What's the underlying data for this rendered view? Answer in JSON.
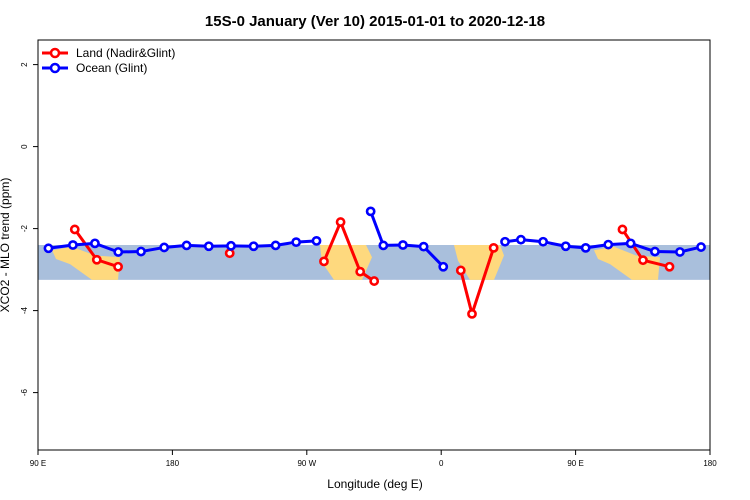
{
  "chart_data": {
    "type": "line",
    "title": "15S-0 January (Ver 10)   2015-01-01 to 2020-12-18",
    "xlabel": "Longitude (deg E)",
    "ylabel": "XCO2 - MLO trend (ppm)",
    "xlim": [
      90,
      450
    ],
    "ylim": [
      -7.4,
      2.6
    ],
    "x_ticks": [
      {
        "value": 90,
        "label": "90 E"
      },
      {
        "value": 162,
        "label": "180"
      },
      {
        "value": 234,
        "label": "90 W"
      },
      {
        "value": 306,
        "label": "0"
      },
      {
        "value": 378,
        "label": "90 E"
      },
      {
        "value": 450,
        "label": "180"
      }
    ],
    "y_ticks": [
      {
        "value": 2,
        "label": "2"
      },
      {
        "value": 0,
        "label": "0"
      },
      {
        "value": -2,
        "label": "-2"
      },
      {
        "value": -4,
        "label": "-4"
      },
      {
        "value": -6,
        "label": "-6"
      }
    ],
    "latitude_band": {
      "y_top": -2.4,
      "y_bottom": -3.25,
      "ocean_color": "#a9bfdc",
      "land_color": "#fed97e"
    },
    "legend_position": "top-left",
    "series": [
      {
        "name": "Land (Nadir&Glint)",
        "color": "#ff0000",
        "segments": [
          [
            [
              109.7,
              -2.02
            ],
            [
              121.5,
              -2.76
            ],
            [
              132.9,
              -2.93
            ]
          ],
          [
            [
              192.7,
              -2.6
            ]
          ],
          [
            [
              243.2,
              -2.8
            ],
            [
              252.1,
              -1.84
            ],
            [
              262.6,
              -3.05
            ],
            [
              270.1,
              -3.28
            ]
          ],
          [
            [
              316.5,
              -3.02
            ],
            [
              322.5,
              -4.08
            ],
            [
              334.1,
              -2.47
            ]
          ],
          [
            [
              403.1,
              -2.02
            ],
            [
              414.1,
              -2.77
            ],
            [
              428.3,
              -2.93
            ]
          ]
        ]
      },
      {
        "name": "Ocean (Glint)",
        "color": "#0000ff",
        "segments": [
          [
            [
              95.6,
              -2.48
            ],
            [
              108.7,
              -2.4
            ],
            [
              120.5,
              -2.36
            ],
            [
              133.0,
              -2.57
            ],
            [
              145.2,
              -2.56
            ],
            [
              157.6,
              -2.46
            ],
            [
              169.6,
              -2.41
            ],
            [
              181.5,
              -2.43
            ],
            [
              193.4,
              -2.42
            ],
            [
              205.5,
              -2.43
            ],
            [
              217.3,
              -2.41
            ],
            [
              228.3,
              -2.33
            ],
            [
              239.2,
              -2.3
            ]
          ],
          [
            [
              268.2,
              -1.58
            ],
            [
              275.0,
              -2.41
            ],
            [
              285.5,
              -2.4
            ],
            [
              296.6,
              -2.44
            ],
            [
              307.1,
              -2.93
            ]
          ],
          [
            [
              340.2,
              -2.32
            ],
            [
              348.7,
              -2.27
            ],
            [
              360.6,
              -2.32
            ],
            [
              372.7,
              -2.43
            ],
            [
              383.4,
              -2.47
            ],
            [
              395.5,
              -2.39
            ],
            [
              407.5,
              -2.36
            ],
            [
              420.5,
              -2.56
            ],
            [
              433.9,
              -2.57
            ],
            [
              445.2,
              -2.45
            ]
          ]
        ]
      }
    ]
  }
}
